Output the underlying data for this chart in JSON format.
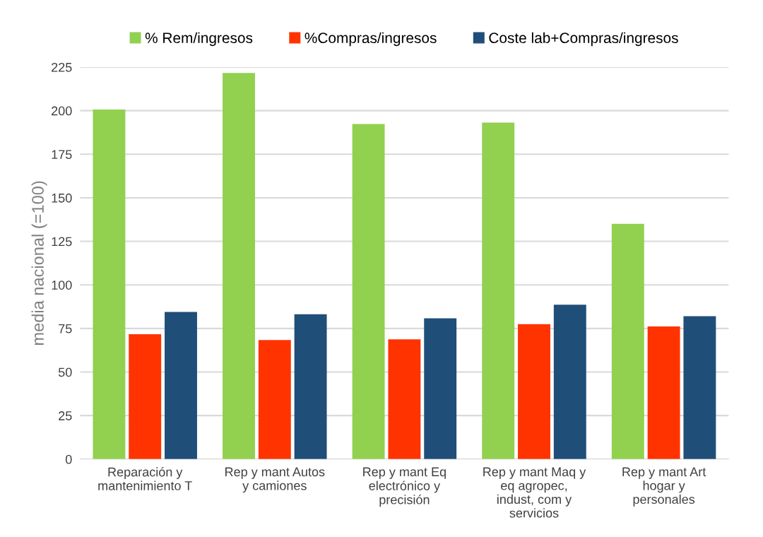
{
  "chart_data": {
    "type": "bar",
    "ylabel": "media nacional (=100)",
    "categories": [
      "Reparación y\nmantenimiento T",
      "Rep y mant Autos\ny camiones",
      "Rep y mant Eq\nelectrónico y\nprecisión",
      "Rep y mant Maq y\neq agropec,\nindust, com y\nservicios",
      "Rep y mant Art\nhogar y\npersonales"
    ],
    "series": [
      {
        "name": "% Rem/ingresos",
        "color": "#92d050",
        "values": [
          200.7,
          221.7,
          192.4,
          193.2,
          135.1
        ]
      },
      {
        "name": "%Compras/ingresos",
        "color": "#ff3300",
        "values": [
          71.7,
          68.4,
          68.8,
          77.5,
          76.2
        ]
      },
      {
        "name": "Coste lab+Compras/ingresos",
        "color": "#1f4e79",
        "values": [
          84.5,
          83.2,
          80.8,
          88.6,
          82.0
        ]
      }
    ],
    "ylim": [
      0,
      225
    ],
    "yticks": [
      0,
      25,
      50,
      75,
      100,
      125,
      150,
      175,
      200,
      225
    ],
    "grid": "y",
    "legend": "top"
  }
}
